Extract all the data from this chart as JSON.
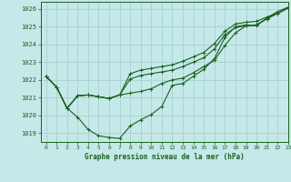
{
  "title": "Graphe pression niveau de la mer (hPa)",
  "background_color": "#c5e8e8",
  "grid_color": "#9ecece",
  "line_color": "#1a6020",
  "xlim": [
    -0.5,
    23
  ],
  "ylim": [
    1018.5,
    1026.4
  ],
  "yticks": [
    1019,
    1020,
    1021,
    1022,
    1023,
    1024,
    1025,
    1026
  ],
  "xticks": [
    0,
    1,
    2,
    3,
    4,
    5,
    6,
    7,
    8,
    9,
    10,
    11,
    12,
    13,
    14,
    15,
    16,
    17,
    18,
    19,
    20,
    21,
    22,
    23
  ],
  "series": [
    [
      1022.2,
      1021.6,
      1020.4,
      1019.9,
      1019.2,
      1018.85,
      1018.75,
      1018.7,
      1019.4,
      1019.75,
      1020.05,
      1020.5,
      1021.7,
      1021.8,
      1022.2,
      1022.6,
      1023.2,
      1024.4,
      1025.0,
      1025.1,
      1025.05,
      1025.5,
      1025.85,
      1026.1
    ],
    [
      1022.2,
      1021.6,
      1020.4,
      1021.1,
      1021.15,
      1021.05,
      1020.95,
      1021.15,
      1021.25,
      1021.35,
      1021.5,
      1021.8,
      1022.0,
      1022.1,
      1022.4,
      1022.75,
      1023.1,
      1023.95,
      1024.65,
      1025.05,
      1025.1,
      1025.45,
      1025.75,
      1026.05
    ],
    [
      1022.2,
      1021.6,
      1020.4,
      1021.1,
      1021.15,
      1021.05,
      1020.95,
      1021.15,
      1022.05,
      1022.25,
      1022.35,
      1022.45,
      1022.55,
      1022.75,
      1023.0,
      1023.25,
      1023.75,
      1024.55,
      1024.95,
      1025.05,
      1025.1,
      1025.45,
      1025.75,
      1026.05
    ],
    [
      1022.2,
      1021.6,
      1020.4,
      1021.1,
      1021.15,
      1021.05,
      1020.95,
      1021.15,
      1022.35,
      1022.55,
      1022.65,
      1022.75,
      1022.85,
      1023.05,
      1023.3,
      1023.55,
      1024.05,
      1024.75,
      1025.15,
      1025.25,
      1025.3,
      1025.55,
      1025.75,
      1026.05
    ]
  ]
}
